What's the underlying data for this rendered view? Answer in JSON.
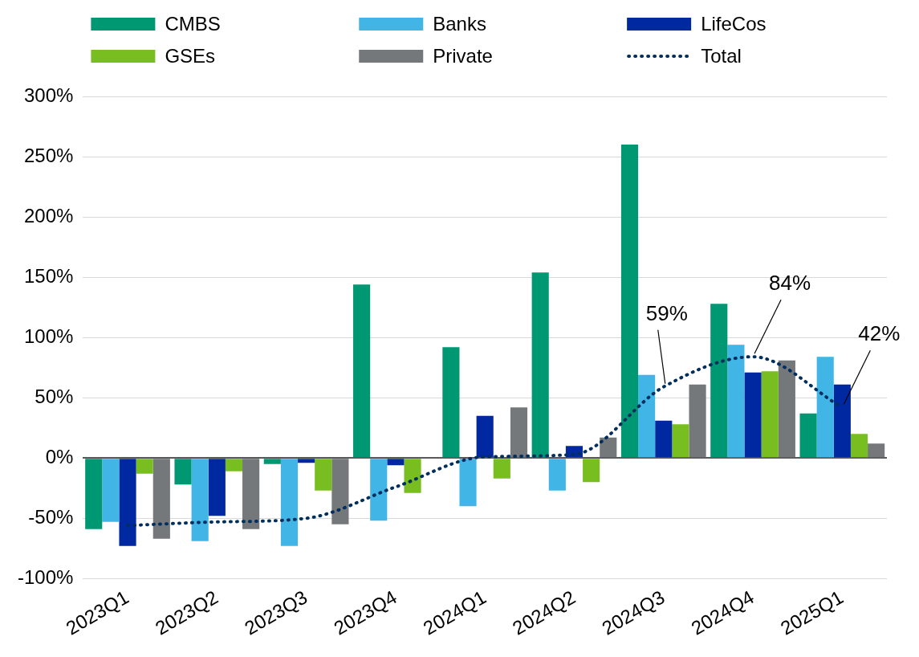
{
  "chart_data": {
    "type": "bar",
    "categories": [
      "2023Q1",
      "2023Q2",
      "2023Q3",
      "2023Q4",
      "2024Q1",
      "2024Q2",
      "2024Q3",
      "2024Q4",
      "2025Q1"
    ],
    "series": [
      {
        "name": "CMBS",
        "color": "#009873",
        "values": [
          -59,
          -22,
          -5,
          144,
          92,
          154,
          260,
          128,
          37
        ]
      },
      {
        "name": "Banks",
        "color": "#41b6e6",
        "values": [
          -53,
          -69,
          -73,
          -52,
          -40,
          -27,
          69,
          94,
          84
        ]
      },
      {
        "name": "LifeCos",
        "color": "#0028a0",
        "values": [
          -73,
          -48,
          -4,
          -6,
          35,
          10,
          31,
          71,
          61
        ]
      },
      {
        "name": "GSEs",
        "color": "#78be20",
        "values": [
          -13,
          -11,
          -27,
          -29,
          -17,
          -20,
          28,
          72,
          20
        ]
      },
      {
        "name": "Private",
        "color": "#75787b",
        "values": [
          -67,
          -59,
          -55,
          null,
          42,
          17,
          61,
          81,
          12
        ]
      },
      {
        "name": "Total",
        "type": "line",
        "color": "#002f5f",
        "line_style": "dotted",
        "marker": "none",
        "values": [
          -56,
          -53,
          -50,
          -24,
          1,
          3,
          59,
          84,
          42
        ],
        "value_labels": [
          null,
          null,
          null,
          null,
          null,
          null,
          "59%",
          "84%",
          "42%"
        ]
      }
    ],
    "ylim": [
      -100,
      300
    ],
    "yticks": [
      {
        "value": -100,
        "label": "-100%"
      },
      {
        "value": -50,
        "label": "-50%"
      },
      {
        "value": 0,
        "label": "0%"
      },
      {
        "value": 50,
        "label": "50%"
      },
      {
        "value": 100,
        "label": "100%"
      },
      {
        "value": 150,
        "label": "150%"
      },
      {
        "value": 200,
        "label": "200%"
      },
      {
        "value": 250,
        "label": "250%"
      },
      {
        "value": 300,
        "label": "300%"
      }
    ],
    "grid": "y",
    "legend": "top"
  }
}
